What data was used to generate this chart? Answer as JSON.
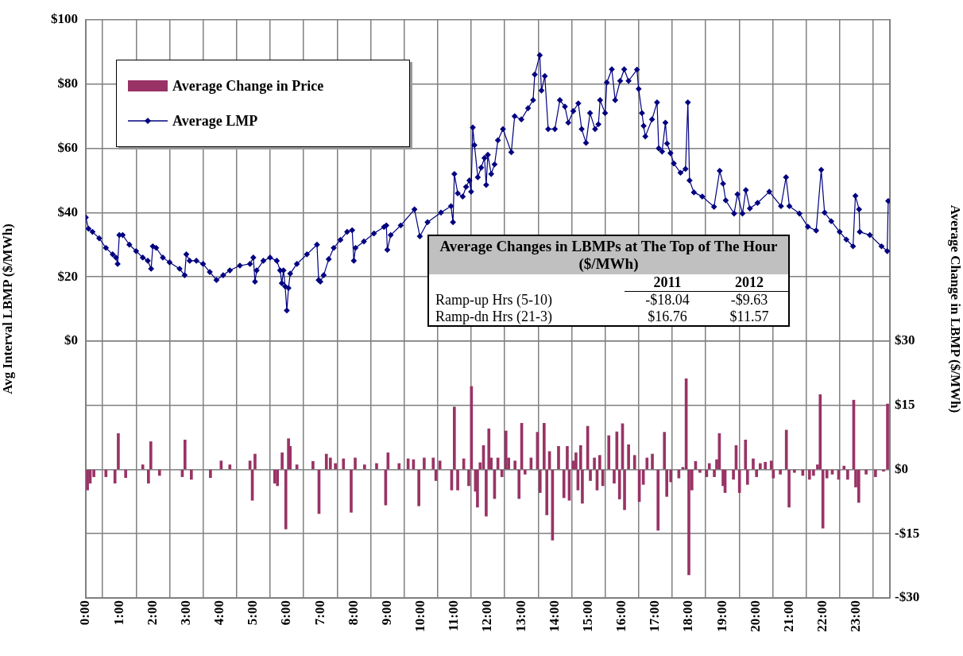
{
  "chart_data": {
    "type": "line",
    "ylabel": "Avg Interval LBMP ($/MWh)",
    "y2label": "Average Change in LBMP ($/MWh)",
    "xlim": [
      0,
      24
    ],
    "xticks": [
      {
        "value": 0,
        "label": "0:00"
      },
      {
        "value": 1,
        "label": "1:00"
      },
      {
        "value": 2,
        "label": "2:00"
      },
      {
        "value": 3,
        "label": "3:00"
      },
      {
        "value": 4,
        "label": "4:00"
      },
      {
        "value": 5,
        "label": "5:00"
      },
      {
        "value": 6,
        "label": "6:00"
      },
      {
        "value": 7,
        "label": "7:00"
      },
      {
        "value": 8,
        "label": "8:00"
      },
      {
        "value": 9,
        "label": "9:00"
      },
      {
        "value": 10,
        "label": "10:00"
      },
      {
        "value": 11,
        "label": "11:00"
      },
      {
        "value": 12,
        "label": "12:00"
      },
      {
        "value": 13,
        "label": "13:00"
      },
      {
        "value": 14,
        "label": "14:00"
      },
      {
        "value": 15,
        "label": "15:00"
      },
      {
        "value": 16,
        "label": "16:00"
      },
      {
        "value": 17,
        "label": "17:00"
      },
      {
        "value": 18,
        "label": "18:00"
      },
      {
        "value": 19,
        "label": "19:00"
      },
      {
        "value": 20,
        "label": "20:00"
      },
      {
        "value": 21,
        "label": "21:00"
      },
      {
        "value": 22,
        "label": "22:00"
      },
      {
        "value": 23,
        "label": "23:00"
      },
      {
        "value": 24,
        "label": null
      }
    ],
    "ylim": [
      -80,
      100
    ],
    "yticks": [
      {
        "value": 0,
        "label": "$0"
      },
      {
        "value": 20,
        "label": "$20"
      },
      {
        "value": 40,
        "label": "$40"
      },
      {
        "value": 60,
        "label": "$60"
      },
      {
        "value": 80,
        "label": "$80"
      },
      {
        "value": 100,
        "label": "$100"
      }
    ],
    "y2lim": [
      -30,
      105
    ],
    "y2ticks": [
      {
        "value": -30,
        "label": "-$30"
      },
      {
        "value": -15,
        "label": "-$15"
      },
      {
        "value": 0,
        "label": "$0"
      },
      {
        "value": 15,
        "label": "$15"
      },
      {
        "value": 30,
        "label": "$30"
      }
    ],
    "grid": true,
    "legend": "top left",
    "marker": "diamond",
    "annotations": [
      "Average Changes in LBMPs at The Top of The Hour ($/MWh)",
      "2011",
      "2012",
      "Ramp-up Hrs (5-10)",
      "-$18.04",
      "-$9.63",
      "Ramp-dn Hrs (21-3)",
      "$16.76",
      "$11.57"
    ],
    "series": [
      {
        "name": "Average Change in Price",
        "type": "bar",
        "axis": "y2",
        "color": "#993366",
        "x": [
          0.05,
          0.13,
          0.24,
          0.6,
          0.87,
          0.97,
          1.19,
          1.7,
          1.87,
          1.94,
          2.2,
          2.88,
          2.96,
          3.15,
          3.72,
          4.04,
          4.3,
          4.9,
          4.97,
          5.05,
          5.64,
          5.72,
          5.86,
          5.97,
          6.05,
          6.1,
          6.3,
          6.78,
          6.96,
          7.18,
          7.3,
          7.45,
          7.69,
          7.92,
          8.04,
          8.32,
          8.68,
          8.95,
          9.02,
          9.35,
          9.62,
          9.78,
          9.94,
          10.1,
          10.37,
          10.45,
          10.57,
          10.92,
          11.0,
          11.1,
          11.28,
          11.43,
          11.51,
          11.63,
          11.69,
          11.77,
          11.87,
          11.95,
          12.03,
          12.1,
          12.2,
          12.3,
          12.42,
          12.54,
          12.62,
          12.81,
          12.93,
          13.01,
          13.11,
          13.29,
          13.48,
          13.56,
          13.68,
          13.76,
          13.84,
          13.93,
          14.11,
          14.27,
          14.37,
          14.43,
          14.55,
          14.63,
          14.69,
          14.77,
          14.82,
          14.98,
          15.06,
          15.18,
          15.26,
          15.34,
          15.43,
          15.61,
          15.77,
          15.85,
          15.93,
          16.02,
          16.08,
          16.2,
          16.38,
          16.52,
          16.64,
          16.75,
          16.91,
          17.08,
          17.27,
          17.34,
          17.46,
          17.7,
          17.82,
          17.92,
          18.0,
          18.09,
          18.2,
          18.33,
          18.53,
          18.61,
          18.76,
          18.83,
          18.91,
          19.02,
          19.08,
          19.33,
          19.41,
          19.51,
          19.69,
          19.75,
          19.92,
          20.02,
          20.13,
          20.28,
          20.46,
          20.52,
          20.73,
          20.91,
          20.99,
          21.15,
          21.4,
          21.6,
          21.72,
          21.84,
          21.92,
          22.0,
          22.12,
          22.28,
          22.47,
          22.63,
          22.74,
          22.92,
          22.98,
          23.07,
          23.29,
          23.57,
          23.81,
          23.93
        ],
        "values": [
          -4.8,
          -3.2,
          -1.7,
          -1.7,
          -3.2,
          8.4,
          -1.9,
          1.1,
          -3.2,
          6.5,
          -1.4,
          -1.7,
          6.9,
          -2.3,
          -1.9,
          2.0,
          1.1,
          2.0,
          -7.2,
          3.6,
          -3.2,
          -3.8,
          3.9,
          -13.9,
          7.2,
          5.4,
          1.1,
          1.9,
          -10.3,
          3.6,
          2.7,
          1.4,
          2.5,
          -10.0,
          2.7,
          1.1,
          1.4,
          -8.3,
          3.9,
          1.4,
          2.5,
          2.3,
          -8.5,
          2.7,
          2.7,
          -2.6,
          2.0,
          -4.8,
          14.6,
          -4.8,
          2.5,
          -3.8,
          19.4,
          -5.1,
          -8.8,
          1.6,
          5.6,
          -10.9,
          9.5,
          2.7,
          -6.8,
          2.7,
          -1.7,
          9.0,
          2.7,
          2.0,
          -6.8,
          10.8,
          -1.1,
          2.7,
          8.7,
          -5.4,
          10.8,
          -10.6,
          4.2,
          -16.5,
          5.4,
          -6.6,
          5.4,
          -7.2,
          2.0,
          3.9,
          -4.8,
          5.6,
          -7.9,
          10.1,
          -2.6,
          2.7,
          -4.8,
          3.3,
          -3.8,
          7.9,
          -3.2,
          8.8,
          -6.9,
          10.7,
          -9.4,
          5.8,
          3.3,
          -7.5,
          -3.5,
          2.7,
          3.6,
          -14.2,
          8.7,
          -6.3,
          -2.9,
          -2.0,
          0.5,
          21.2,
          -24.6,
          -4.8,
          1.9,
          -0.7,
          -1.7,
          1.4,
          -1.7,
          2.3,
          8.4,
          -3.8,
          -5.4,
          -2.3,
          5.6,
          -5.4,
          6.9,
          -3.5,
          2.5,
          -1.7,
          1.4,
          1.7,
          2.0,
          -2.0,
          -1.1,
          9.2,
          -8.8,
          -0.7,
          -1.4,
          -2.3,
          -1.4,
          1.1,
          17.5,
          -13.7,
          -2.0,
          -1.1,
          -2.3,
          0.8,
          -2.3,
          16.2,
          -4.1,
          -7.7,
          -1.1,
          -1.7,
          -0.4,
          15.3
        ]
      },
      {
        "name": "Average LMP",
        "color": "#000080",
        "x": [
          0,
          0.08,
          0.2,
          0.4,
          0.6,
          0.8,
          0.9,
          0.95,
          1.0,
          1.1,
          1.3,
          1.5,
          1.7,
          1.85,
          1.95,
          2.0,
          2.1,
          2.3,
          2.5,
          2.8,
          2.95,
          3.0,
          3.1,
          3.3,
          3.5,
          3.7,
          3.9,
          4.1,
          4.3,
          4.6,
          4.9,
          5.0,
          5.05,
          5.1,
          5.3,
          5.5,
          5.7,
          5.8,
          5.85,
          5.9,
          5.95,
          6.0,
          6.05,
          6.1,
          6.3,
          6.6,
          6.9,
          6.95,
          7.0,
          7.1,
          7.25,
          7.4,
          7.6,
          7.8,
          7.95,
          8.0,
          8.05,
          8.3,
          8.6,
          8.9,
          8.97,
          9.0,
          9.1,
          9.4,
          9.81,
          9.97,
          10.2,
          10.6,
          10.9,
          10.96,
          11.0,
          11.1,
          11.25,
          11.35,
          11.45,
          11.5,
          11.55,
          11.6,
          11.7,
          11.8,
          11.9,
          11.95,
          12.0,
          12.1,
          12.2,
          12.3,
          12.45,
          12.7,
          12.8,
          13.0,
          13.2,
          13.35,
          13.4,
          13.55,
          13.6,
          13.7,
          13.8,
          14.0,
          14.15,
          14.3,
          14.4,
          14.55,
          14.7,
          14.8,
          14.93,
          15.05,
          15.2,
          15.3,
          15.35,
          15.5,
          15.55,
          15.7,
          15.8,
          15.95,
          16.07,
          16.2,
          16.45,
          16.5,
          16.6,
          16.65,
          16.7,
          16.9,
          17.05,
          17.1,
          17.2,
          17.3,
          17.35,
          17.45,
          17.55,
          17.75,
          17.9,
          17.97,
          18.02,
          18.15,
          18.4,
          18.75,
          18.92,
          19.02,
          19.1,
          19.35,
          19.45,
          19.6,
          19.7,
          19.82,
          20.05,
          20.4,
          20.75,
          20.9,
          21.0,
          21.3,
          21.55,
          21.8,
          21.95,
          22.05,
          22.25,
          22.5,
          22.7,
          22.9,
          22.97,
          23.08,
          23.1,
          23.4,
          23.75,
          23.92,
          23.95
        ],
        "values": [
          38.5,
          35,
          34,
          32,
          29,
          27,
          26,
          24,
          33,
          33,
          30,
          28,
          26,
          25,
          22.5,
          29.5,
          29,
          26,
          24.5,
          22.5,
          20.5,
          27,
          25,
          25,
          24,
          21.5,
          19,
          20.5,
          22,
          23.5,
          24,
          26,
          18.5,
          22,
          25,
          26,
          25,
          22,
          18,
          22,
          17,
          9.5,
          16.5,
          21,
          24,
          27,
          30,
          19,
          18.5,
          20.5,
          25.5,
          29,
          31.5,
          34,
          34.5,
          25,
          29,
          31,
          33.5,
          35.5,
          36,
          28.4,
          33,
          36,
          41,
          32.6,
          37,
          40,
          42,
          37,
          52,
          46,
          45,
          48,
          50,
          46.5,
          66.5,
          61,
          51,
          54,
          57,
          48.6,
          58,
          52,
          55,
          62.5,
          66,
          58.8,
          70,
          69,
          72.5,
          75,
          83,
          89,
          78,
          82.5,
          66,
          66,
          75,
          73,
          68,
          71.6,
          74,
          66,
          61.7,
          71,
          66,
          67.5,
          75,
          71,
          80.5,
          84.6,
          75,
          81,
          84.6,
          81,
          84.5,
          78.5,
          71,
          67,
          63.7,
          69,
          74.3,
          60,
          59,
          68,
          61.5,
          58.5,
          55.3,
          52.4,
          53.6,
          74.3,
          50,
          46.3,
          45,
          41.8,
          53,
          49,
          43.8,
          39.7,
          45.7,
          39.7,
          47,
          41.3,
          43,
          46.5,
          42,
          51,
          42,
          39.7,
          35.6,
          34.4,
          53.3,
          40,
          37.3,
          34,
          31.6,
          29.5,
          45.2,
          41,
          34,
          33,
          29.5,
          28,
          43.6
        ]
      }
    ]
  }
}
